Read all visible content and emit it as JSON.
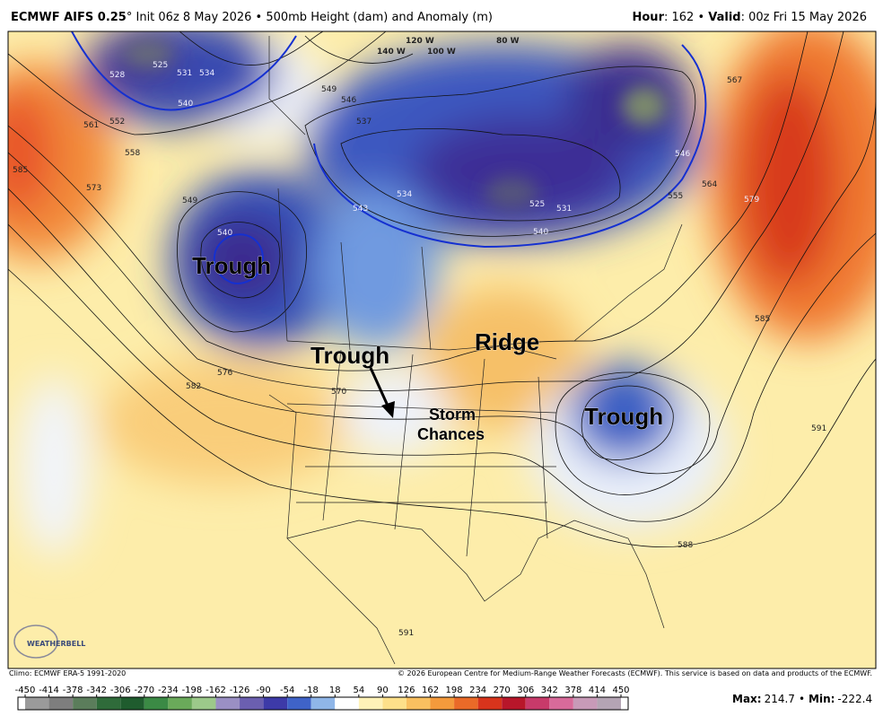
{
  "header": {
    "title_bold": "ECMWF AIFS 0.25",
    "title_rest": "° Init 06z 8 May 2026 • 500mb Height (dam) and Anomaly (m)",
    "hour_label": "Hour",
    "hour_value": ": 162 • ",
    "valid_label": "Valid",
    "valid_value": ": 00z Fri 15 May 2026"
  },
  "map": {
    "annotations": [
      "Trough",
      "Trough",
      "Ridge",
      "Trough"
    ],
    "storm_chances": [
      "Storm",
      "Chances"
    ],
    "contour_labels": [
      "525",
      "531",
      "534",
      "528",
      "540",
      "552",
      "561",
      "558",
      "573",
      "585",
      "549",
      "540",
      "543",
      "537",
      "549",
      "546",
      "534",
      "525",
      "531",
      "540",
      "546",
      "555",
      "564",
      "567",
      "579",
      "585",
      "591",
      "588",
      "576",
      "570",
      "582",
      "591"
    ],
    "longitude_labels": [
      "140 W",
      "120 W",
      "100 W",
      "80 W"
    ],
    "logo": "WEATHERBELL"
  },
  "footer": {
    "climo": "Climo: ECMWF ERA-5 1991-2020",
    "copyright": "© 2026 European Centre for Medium-Range Weather Forecasts (ECMWF). This service is based on data and products of the ECMWF."
  },
  "colorbar": {
    "ticks": [
      -450,
      -414,
      -378,
      -342,
      -306,
      -270,
      -234,
      -198,
      -162,
      -126,
      -90,
      -54,
      -18,
      18,
      54,
      90,
      126,
      162,
      198,
      234,
      270,
      306,
      342,
      378,
      414,
      450
    ],
    "colors": [
      "#9a9a9a",
      "#7e7e7e",
      "#5b7d5b",
      "#2f6b3a",
      "#1f5c2e",
      "#3b8a45",
      "#6aaa5a",
      "#9cc98a",
      "#9a8fc4",
      "#6b5fb0",
      "#3d3aa8",
      "#3f63c8",
      "#8fb6e8",
      "#ffffff",
      "#fff2b8",
      "#fde08a",
      "#f9c060",
      "#f49a3c",
      "#ea6a28",
      "#d8341c",
      "#b8162a",
      "#c83a6a",
      "#d86a9a",
      "#c89ab8",
      "#b4a4b4"
    ],
    "max_label": "Max:",
    "max_value": 214.7,
    "separator": "•",
    "min_label": "Min:",
    "min_value": -222.4
  }
}
